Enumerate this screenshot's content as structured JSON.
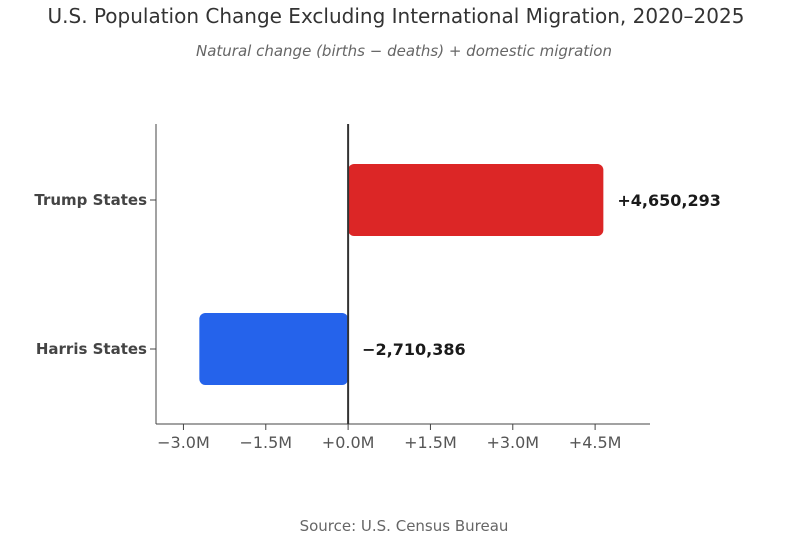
{
  "chart_data": {
    "type": "bar",
    "orientation": "horizontal",
    "title": "U.S. Population Change Excluding International Migration, 2020–2025",
    "subtitle": "Natural change (births − deaths) + domestic migration",
    "source": "Source: U.S. Census Bureau",
    "categories": [
      "Trump States",
      "Harris States"
    ],
    "values": [
      4650293,
      -2710386
    ],
    "data_labels": [
      "+4,650,293",
      "−2,710,386"
    ],
    "colors": [
      "#dc2626",
      "#2563eb"
    ],
    "xlim": [
      -3500000,
      5500000
    ],
    "xticks": [
      -3000000,
      -1500000,
      0,
      1500000,
      3000000,
      4500000
    ],
    "xtick_labels": [
      "−3.0M",
      "−1.5M",
      "+0.0M",
      "+1.5M",
      "+3.0M",
      "+4.5M"
    ],
    "xlabel": "",
    "ylabel": "",
    "grid": false,
    "legend": "none"
  }
}
